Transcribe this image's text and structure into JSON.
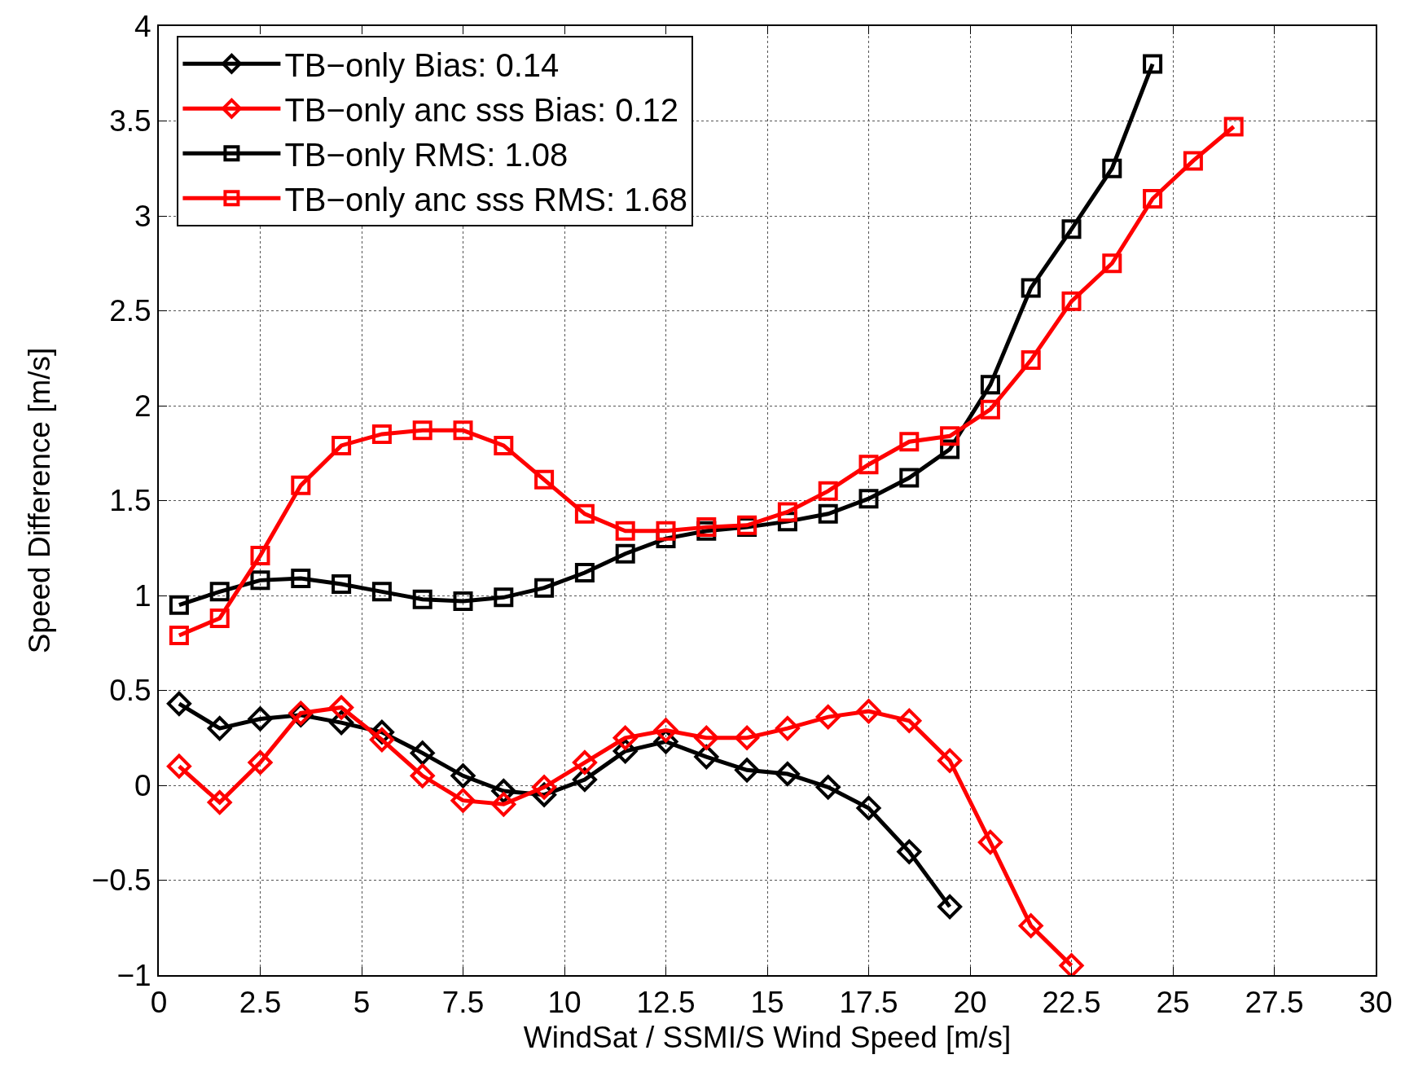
{
  "chart_data": {
    "type": "line",
    "xlabel": "WindSat / SSMI/S Wind Speed [m/s]",
    "ylabel": "Speed Difference [m/s]",
    "xlim": [
      0,
      30
    ],
    "xticks": [
      0,
      2.5,
      5,
      7.5,
      10,
      12.5,
      15,
      17.5,
      20,
      22.5,
      25,
      27.5,
      30
    ],
    "ylim": [
      -1,
      4
    ],
    "yticks": [
      -1,
      -0.5,
      0,
      0.5,
      1,
      1.5,
      2,
      2.5,
      3,
      3.5,
      4
    ],
    "grid": true,
    "legend": "top left",
    "line_style": "solid",
    "series": [
      {
        "name": "TB−only Bias: 0.14",
        "color": "#000000",
        "marker": "diamond",
        "x": [
          0.5,
          1.5,
          2.5,
          3.5,
          4.5,
          5.5,
          6.5,
          7.5,
          8.5,
          9.5,
          10.5,
          11.5,
          12.5,
          13.5,
          14.5,
          15.5,
          16.5,
          17.5,
          18.5,
          19.5
        ],
        "values": [
          0.43,
          0.3,
          0.35,
          0.37,
          0.33,
          0.28,
          0.17,
          0.05,
          -0.03,
          -0.05,
          0.03,
          0.18,
          0.23,
          0.15,
          0.08,
          0.06,
          -0.01,
          -0.12,
          -0.35,
          -0.64
        ]
      },
      {
        "name": "TB−only anc sss Bias: 0.12",
        "color": "#ff0000",
        "marker": "diamond",
        "x": [
          0.5,
          1.5,
          2.5,
          3.5,
          4.5,
          5.5,
          6.5,
          7.5,
          8.5,
          9.5,
          10.5,
          11.5,
          12.5,
          13.5,
          14.5,
          15.5,
          16.5,
          17.5,
          18.5,
          19.5,
          20.5,
          21.5,
          22.5
        ],
        "values": [
          0.1,
          -0.09,
          0.12,
          0.38,
          0.41,
          0.24,
          0.05,
          -0.08,
          -0.1,
          -0.01,
          0.12,
          0.25,
          0.29,
          0.25,
          0.25,
          0.3,
          0.36,
          0.39,
          0.34,
          0.13,
          -0.3,
          -0.74,
          -0.95
        ]
      },
      {
        "name": "TB−only RMS: 1.08",
        "color": "#000000",
        "marker": "square",
        "x": [
          0.5,
          1.5,
          2.5,
          3.5,
          4.5,
          5.5,
          6.5,
          7.5,
          8.5,
          9.5,
          10.5,
          11.5,
          12.5,
          13.5,
          14.5,
          15.5,
          16.5,
          17.5,
          18.5,
          19.5,
          20.5,
          21.5,
          22.5,
          23.5,
          24.5
        ],
        "values": [
          0.95,
          1.02,
          1.08,
          1.09,
          1.06,
          1.02,
          0.98,
          0.97,
          0.99,
          1.04,
          1.12,
          1.22,
          1.3,
          1.34,
          1.36,
          1.39,
          1.43,
          1.51,
          1.62,
          1.77,
          2.11,
          2.62,
          2.93,
          3.25,
          3.8
        ]
      },
      {
        "name": "TB−only anc sss RMS: 1.68",
        "color": "#ff0000",
        "marker": "square",
        "x": [
          0.5,
          1.5,
          2.5,
          3.5,
          4.5,
          5.5,
          6.5,
          7.5,
          8.5,
          9.5,
          10.5,
          11.5,
          12.5,
          13.5,
          14.5,
          15.5,
          16.5,
          17.5,
          18.5,
          19.5,
          20.5,
          21.5,
          22.5,
          23.5,
          24.5,
          25.5,
          26.5
        ],
        "values": [
          0.79,
          0.88,
          1.21,
          1.58,
          1.79,
          1.85,
          1.87,
          1.87,
          1.79,
          1.61,
          1.43,
          1.34,
          1.34,
          1.36,
          1.37,
          1.44,
          1.55,
          1.69,
          1.81,
          1.84,
          1.98,
          2.24,
          2.55,
          2.75,
          3.09,
          3.29,
          3.47
        ]
      }
    ]
  }
}
